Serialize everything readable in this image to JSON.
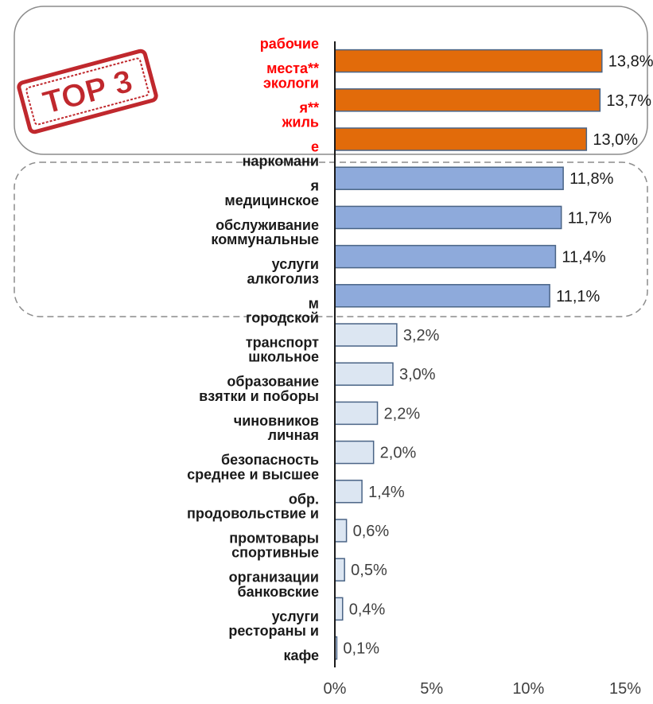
{
  "badge": {
    "text": "TOP 3",
    "color": "#c0282d"
  },
  "colors": {
    "top": "#e26b0a",
    "mid": "#8eaadb",
    "low": "#dce6f2",
    "edge": "#4a6486",
    "top_label": "#ff0000",
    "label": "#1a1a1a"
  },
  "chart_data": {
    "type": "bar",
    "orientation": "horizontal",
    "categories": [
      [
        "рабочие",
        "места**"
      ],
      [
        "экологи",
        "я**"
      ],
      [
        "жиль",
        "е"
      ],
      [
        "наркомани",
        "я"
      ],
      [
        "медицинское",
        "обслуживание"
      ],
      [
        "коммунальные",
        "услуги"
      ],
      [
        "алкоголиз",
        "м"
      ],
      [
        "городской",
        "транспорт"
      ],
      [
        "школьное",
        "образование"
      ],
      [
        "взятки и поборы",
        "чиновников"
      ],
      [
        "личная",
        "безопасность"
      ],
      [
        "среднее и высшее",
        "обр."
      ],
      [
        "продовольствие и",
        "промтовары"
      ],
      [
        "спортивные",
        "организации"
      ],
      [
        "банковские",
        "услуги"
      ],
      [
        "рестораны и",
        "кафе"
      ]
    ],
    "values": [
      13.8,
      13.7,
      13.0,
      11.8,
      11.7,
      11.4,
      11.1,
      3.2,
      3.0,
      2.2,
      2.0,
      1.4,
      0.6,
      0.5,
      0.4,
      0.1
    ],
    "value_labels": [
      "13,8%",
      "13,7%",
      "13,0%",
      "11,8%",
      "11,7%",
      "11,4%",
      "11,1%",
      "3,2%",
      "3,0%",
      "2,2%",
      "2,0%",
      "1,4%",
      "0,6%",
      "0,5%",
      "0,4%",
      "0,1%"
    ],
    "groups": [
      "top",
      "top",
      "top",
      "mid",
      "mid",
      "mid",
      "mid",
      "low",
      "low",
      "low",
      "low",
      "low",
      "low",
      "low",
      "low",
      "low"
    ],
    "xlim": [
      0,
      15
    ],
    "xticks": [
      0,
      5,
      10,
      15
    ],
    "xtick_labels": [
      "0%",
      "5%",
      "10%",
      "15%"
    ],
    "grid": false,
    "title": "",
    "xlabel": "",
    "ylabel": ""
  }
}
